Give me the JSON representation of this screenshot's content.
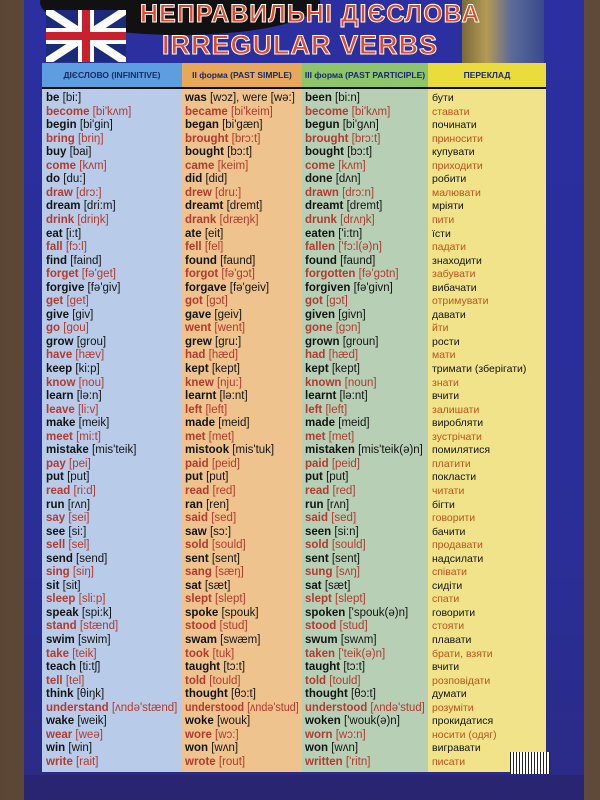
{
  "title": {
    "ukrainian": "НЕПРАВИЛЬНІ ДІЄСЛОВА",
    "english": "IRREGULAR VERBS"
  },
  "headers": [
    "ДІЄСЛОВО (INFINITIVE)",
    "II форма (PAST SIMPLE)",
    "III форма (PAST PARTICIPLE)",
    "ПЕРЕКЛАД"
  ],
  "colors": {
    "infinitive_bg": "#b8cbe8",
    "past_bg": "#efc38d",
    "participle_bg": "#b7cfb5",
    "translation_bg": "#f0e38a",
    "accent_red": "#b33a2e",
    "poster_blue": "#2b2fa0"
  },
  "rows": [
    {
      "inf": "be",
      "inf_t": "[bi:]",
      "past": "was",
      "past_t": "[wɔz], were [wə:]",
      "pp": "been",
      "pp_t": "[bi:n]",
      "tr": "бути"
    },
    {
      "inf": "become",
      "inf_t": "[bi'kʌm]",
      "past": "became",
      "past_t": "[bi'keim]",
      "pp": "become",
      "pp_t": "[bi'kʌm]",
      "tr": "ставати"
    },
    {
      "inf": "begin",
      "inf_t": "[bi'gin]",
      "past": "began",
      "past_t": "[bi'gæn]",
      "pp": "begun",
      "pp_t": "[bi'gʌn]",
      "tr": "починати"
    },
    {
      "inf": "bring",
      "inf_t": "[briŋ]",
      "past": "brought",
      "past_t": "[brɔ:t]",
      "pp": "brought",
      "pp_t": "[brɔ:t]",
      "tr": "приносити"
    },
    {
      "inf": "buy",
      "inf_t": "[bai]",
      "past": "bought",
      "past_t": "[bɔ:t]",
      "pp": "bought",
      "pp_t": "[bɔ:t]",
      "tr": "купувати"
    },
    {
      "inf": "come",
      "inf_t": "[kʌm]",
      "past": "came",
      "past_t": "[keim]",
      "pp": "come",
      "pp_t": "[kʌm]",
      "tr": "приходити"
    },
    {
      "inf": "do",
      "inf_t": "[du:]",
      "past": "did",
      "past_t": "[did]",
      "pp": "done",
      "pp_t": "[dʌn]",
      "tr": "робити"
    },
    {
      "inf": "draw",
      "inf_t": "[drɔ:]",
      "past": "drew",
      "past_t": "[dru:]",
      "pp": "drawn",
      "pp_t": "[drɔ:n]",
      "tr": "малювати"
    },
    {
      "inf": "dream",
      "inf_t": "[dri:m]",
      "past": "dreamt",
      "past_t": "[dremt]",
      "pp": "dreamt",
      "pp_t": "[dremt]",
      "tr": "мріяти"
    },
    {
      "inf": "drink",
      "inf_t": "[driŋk]",
      "past": "drank",
      "past_t": "[dræŋk]",
      "pp": "drunk",
      "pp_t": "[drʌŋk]",
      "tr": "пити"
    },
    {
      "inf": "eat",
      "inf_t": "[i:t]",
      "past": "ate",
      "past_t": "[eit]",
      "pp": "eaten",
      "pp_t": "['i:tn]",
      "tr": "їсти"
    },
    {
      "inf": "fall",
      "inf_t": "[fɔ:l]",
      "past": "fell",
      "past_t": "[fel]",
      "pp": "fallen",
      "pp_t": "['fɔ:l(ə)n]",
      "tr": "падати"
    },
    {
      "inf": "find",
      "inf_t": "[faind]",
      "past": "found",
      "past_t": "[faund]",
      "pp": "found",
      "pp_t": "[faund]",
      "tr": "знаходити"
    },
    {
      "inf": "forget",
      "inf_t": "[fə'get]",
      "past": "forgot",
      "past_t": "[fə'gɔt]",
      "pp": "forgotten",
      "pp_t": "[fə'gɔtn]",
      "tr": "забувати"
    },
    {
      "inf": "forgive",
      "inf_t": "[fə'giv]",
      "past": "forgave",
      "past_t": "[fə'geiv]",
      "pp": "forgiven",
      "pp_t": "[fə'givn]",
      "tr": "вибачати"
    },
    {
      "inf": "get",
      "inf_t": "[get]",
      "past": "got",
      "past_t": "[gɔt]",
      "pp": "got",
      "pp_t": "[gɔt]",
      "tr": "отримувати"
    },
    {
      "inf": "give",
      "inf_t": "[giv]",
      "past": "gave",
      "past_t": "[geiv]",
      "pp": "given",
      "pp_t": "[givn]",
      "tr": "давати"
    },
    {
      "inf": "go",
      "inf_t": "[gou]",
      "past": "went",
      "past_t": "[went]",
      "pp": "gone",
      "pp_t": "[gɔn]",
      "tr": "йти"
    },
    {
      "inf": "grow",
      "inf_t": "[grou]",
      "past": "grew",
      "past_t": "[gru:]",
      "pp": "grown",
      "pp_t": "[groun]",
      "tr": "рости"
    },
    {
      "inf": "have",
      "inf_t": "[hæv]",
      "past": "had",
      "past_t": "[hæd]",
      "pp": "had",
      "pp_t": "[hæd]",
      "tr": "мати"
    },
    {
      "inf": "keep",
      "inf_t": "[ki:p]",
      "past": "kept",
      "past_t": "[kept]",
      "pp": "kept",
      "pp_t": "[kept]",
      "tr": "тримати (зберігати)"
    },
    {
      "inf": "know",
      "inf_t": "[nou]",
      "past": "knew",
      "past_t": "[nju:]",
      "pp": "known",
      "pp_t": "[noun]",
      "tr": "знати"
    },
    {
      "inf": "learn",
      "inf_t": "[lə:n]",
      "past": "learnt",
      "past_t": "[lə:nt]",
      "pp": "learnt",
      "pp_t": "[lə:nt]",
      "tr": "вчити"
    },
    {
      "inf": "leave",
      "inf_t": "[li:v]",
      "past": "left",
      "past_t": "[left]",
      "pp": "left",
      "pp_t": "[left]",
      "tr": "залишати"
    },
    {
      "inf": "make",
      "inf_t": "[meik]",
      "past": "made",
      "past_t": "[meid]",
      "pp": "made",
      "pp_t": "[meid]",
      "tr": "виробляти"
    },
    {
      "inf": "meet",
      "inf_t": "[mi:t]",
      "past": "met",
      "past_t": "[met]",
      "pp": "met",
      "pp_t": "[met]",
      "tr": "зустрічати"
    },
    {
      "inf": "mistake",
      "inf_t": "[mis'teik]",
      "past": "mistook",
      "past_t": "[mis'tuk]",
      "pp": "mistaken",
      "pp_t": "[mis'teik(ə)n]",
      "tr": "помилятися"
    },
    {
      "inf": "pay",
      "inf_t": "[pei]",
      "past": "paid",
      "past_t": "[peid]",
      "pp": "paid",
      "pp_t": "[peid]",
      "tr": "платити"
    },
    {
      "inf": "put",
      "inf_t": "[put]",
      "past": "put",
      "past_t": "[put]",
      "pp": "put",
      "pp_t": "[put]",
      "tr": "покласти"
    },
    {
      "inf": "read",
      "inf_t": "[ri:d]",
      "past": "read",
      "past_t": "[red]",
      "pp": "read",
      "pp_t": "[red]",
      "tr": "читати"
    },
    {
      "inf": "run",
      "inf_t": "[rʌn]",
      "past": "ran",
      "past_t": "[ren]",
      "pp": "run",
      "pp_t": "[rʌn]",
      "tr": "бігти"
    },
    {
      "inf": "say",
      "inf_t": "[sei]",
      "past": "said",
      "past_t": "[sed]",
      "pp": "said",
      "pp_t": "[sed]",
      "tr": "говорити"
    },
    {
      "inf": "see",
      "inf_t": "[si:]",
      "past": "saw",
      "past_t": "[sɔ:]",
      "pp": "seen",
      "pp_t": "[si:n]",
      "tr": "бачити"
    },
    {
      "inf": "sell",
      "inf_t": "[sel]",
      "past": "sold",
      "past_t": "[sould]",
      "pp": "sold",
      "pp_t": "[sould]",
      "tr": "продавати"
    },
    {
      "inf": "send",
      "inf_t": "[send]",
      "past": "sent",
      "past_t": "[sent]",
      "pp": "sent",
      "pp_t": "[sent]",
      "tr": "надсилати"
    },
    {
      "inf": "sing",
      "inf_t": "[siŋ]",
      "past": "sang",
      "past_t": "[sæŋ]",
      "pp": "sung",
      "pp_t": "[sʌŋ]",
      "tr": "співати"
    },
    {
      "inf": "sit",
      "inf_t": "[sit]",
      "past": "sat",
      "past_t": "[sæt]",
      "pp": "sat",
      "pp_t": "[sæt]",
      "tr": "сидіти"
    },
    {
      "inf": "sleep",
      "inf_t": "[sli:p]",
      "past": "slept",
      "past_t": "[slept]",
      "pp": "slept",
      "pp_t": "[slept]",
      "tr": "спати"
    },
    {
      "inf": "speak",
      "inf_t": "[spi:k]",
      "past": "spoke",
      "past_t": "[spouk]",
      "pp": "spoken",
      "pp_t": "['spouk(ə)n]",
      "tr": "говорити"
    },
    {
      "inf": "stand",
      "inf_t": "[stænd]",
      "past": "stood",
      "past_t": "[stud]",
      "pp": "stood",
      "pp_t": "[stud]",
      "tr": "стояти"
    },
    {
      "inf": "swim",
      "inf_t": "[swim]",
      "past": "swam",
      "past_t": "[swæm]",
      "pp": "swum",
      "pp_t": "[swʌm]",
      "tr": "плавати"
    },
    {
      "inf": "take",
      "inf_t": "[teik]",
      "past": "took",
      "past_t": "[tuk]",
      "pp": "taken",
      "pp_t": "['teik(ə)n]",
      "tr": "брати, взяти"
    },
    {
      "inf": "teach",
      "inf_t": "[ti:tʃ]",
      "past": "taught",
      "past_t": "[tɔ:t]",
      "pp": "taught",
      "pp_t": "[tɔ:t]",
      "tr": "вчити"
    },
    {
      "inf": "tell",
      "inf_t": "[tel]",
      "past": "told",
      "past_t": "[tould]",
      "pp": "told",
      "pp_t": "[tould]",
      "tr": "розповідати"
    },
    {
      "inf": "think",
      "inf_t": "[θiŋk]",
      "past": "thought",
      "past_t": "[θɔ:t]",
      "pp": "thought",
      "pp_t": "[θɔ:t]",
      "tr": "думати"
    },
    {
      "inf": "understand",
      "inf_t": "[ʌndə'stænd]",
      "past": "understood",
      "past_t": "[ʌndə'stud]",
      "pp": "understood",
      "pp_t": "[ʌndə'stud]",
      "tr": "розуміти"
    },
    {
      "inf": "wake",
      "inf_t": "[weik]",
      "past": "woke",
      "past_t": "[wouk]",
      "pp": "woken",
      "pp_t": "['wouk(ə)n]",
      "tr": "прокидатися"
    },
    {
      "inf": "wear",
      "inf_t": "[weə]",
      "past": "wore",
      "past_t": "[wɔ:]",
      "pp": "worn",
      "pp_t": "[wɔ:n]",
      "tr": "носити (одяг)"
    },
    {
      "inf": "win",
      "inf_t": "[win]",
      "past": "won",
      "past_t": "[wʌn]",
      "pp": "won",
      "pp_t": "[wʌn]",
      "tr": "вигравати"
    },
    {
      "inf": "write",
      "inf_t": "[rait]",
      "past": "wrote",
      "past_t": "[rout]",
      "pp": "written",
      "pp_t": "['ritn]",
      "tr": "писати"
    }
  ]
}
